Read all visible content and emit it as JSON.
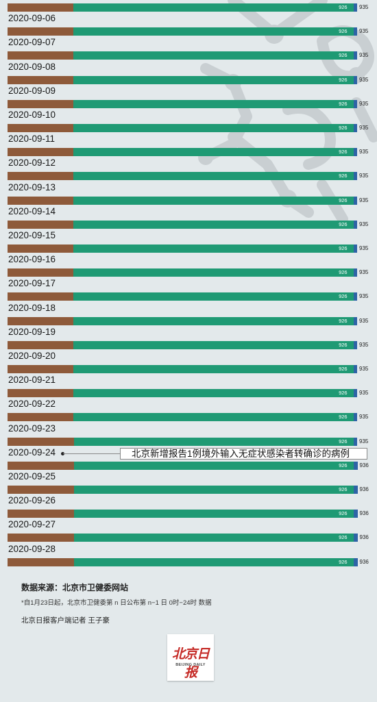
{
  "chart_data": {
    "type": "bar",
    "orientation": "horizontal-stacked",
    "categories": [
      "",
      "2020-09-06",
      "2020-09-07",
      "2020-09-08",
      "2020-09-09",
      "2020-09-10",
      "2020-09-11",
      "2020-09-12",
      "2020-09-13",
      "2020-09-14",
      "2020-09-15",
      "2020-09-16",
      "2020-09-17",
      "2020-09-18",
      "2020-09-19",
      "2020-09-20",
      "2020-09-21",
      "2020-09-22",
      "2020-09-23",
      "2020-09-24",
      "2020-09-25",
      "2020-09-26",
      "2020-09-27",
      "2020-09-28"
    ],
    "series": [
      {
        "color": "#8e5a3a",
        "values": [
          176,
          176,
          176,
          176,
          176,
          176,
          176,
          176,
          176,
          176,
          176,
          176,
          176,
          176,
          176,
          176,
          176,
          176,
          177,
          177,
          177,
          177,
          177,
          177
        ],
        "show_label": true
      },
      {
        "color": "#1f9a74",
        "values": [
          750,
          750,
          750,
          750,
          750,
          750,
          750,
          750,
          750,
          750,
          750,
          750,
          750,
          750,
          750,
          750,
          750,
          750,
          749,
          749,
          749,
          749,
          749,
          749
        ],
        "label_as_cumulative": true
      },
      {
        "color": "#2e64a6",
        "values": [
          9,
          9,
          9,
          9,
          9,
          9,
          9,
          9,
          9,
          9,
          9,
          9,
          9,
          9,
          9,
          9,
          9,
          9,
          9,
          10,
          10,
          10,
          10,
          10
        ]
      }
    ],
    "cumulative_labels": [
      "926",
      "926",
      "926",
      "926",
      "926",
      "926",
      "926",
      "926",
      "926",
      "926",
      "926",
      "926",
      "926",
      "926",
      "926",
      "926",
      "926",
      "926",
      "926",
      "926",
      "926",
      "926",
      "926",
      "926"
    ],
    "totals": [
      "935",
      "935",
      "935",
      "935",
      "935",
      "935",
      "935",
      "935",
      "935",
      "935",
      "935",
      "935",
      "935",
      "935",
      "935",
      "935",
      "935",
      "935",
      "935",
      "936",
      "936",
      "936",
      "936",
      "936"
    ],
    "xlim": [
      0,
      935
    ],
    "annotation": {
      "category": "2020-09-24",
      "text": "北京新增报告1例境外输入无症状感染者转确诊的病例"
    }
  },
  "footer": {
    "source": "数据来源：北京市卫健委网站",
    "note": "*自1月23日起，北京市卫健委第 n 日公布第 n−1 日 0时−24时 数据",
    "credit": "北京日报客户端记者 王子豪"
  },
  "logo": {
    "mark": "北京日报",
    "english": "BEIJING DAILY"
  },
  "colors": {
    "background": "#e3e9eb",
    "decoration": "#c9cfd2"
  }
}
